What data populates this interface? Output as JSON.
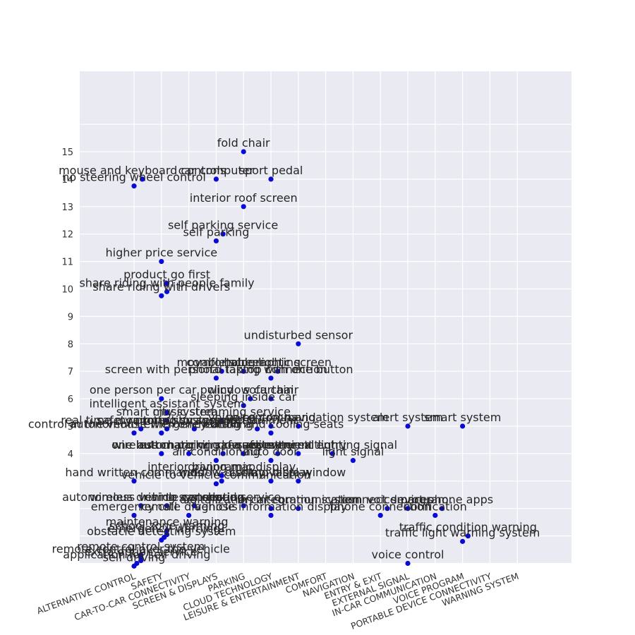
{
  "chart_data": {
    "type": "scatter",
    "title": "",
    "xlabel": "",
    "ylabel": "",
    "grid": true,
    "ylim": [
      0,
      16
    ],
    "yticks": [
      4,
      5,
      6,
      7,
      8,
      9,
      10,
      11,
      12,
      13,
      14,
      15
    ],
    "categories": [
      "ALTERNATIVE CONTROL",
      "SAFETY",
      "CAR-TO-CAR CONNECTIVITY",
      "SCREEN & DISPLAYS",
      "PARKING",
      "CLOUD TECHNOLOGY",
      "LEISURE & ENTERTAINMENT",
      "COMFORT",
      "NAVIGATION",
      "ENTRY & EXIT",
      "EXTERNAL SIGNAL",
      "IN-CAR COMMUNICATION",
      "VOICE PROGRAM",
      "PORTABLE DEVICE CONNECTIVITY",
      "WARNING SYSTEM"
    ],
    "points": [
      {
        "x": 4,
        "y": 15.0,
        "label": "fold chair"
      },
      {
        "x": 0.3,
        "y": 14.0,
        "label": "mouse and keyboard controls"
      },
      {
        "x": 0.0,
        "y": 13.75,
        "label": "no steering wheel control"
      },
      {
        "x": 3,
        "y": 14.0,
        "label": "car computer"
      },
      {
        "x": 5,
        "y": 14.0,
        "label": "sport pedal"
      },
      {
        "x": 4,
        "y": 13.0,
        "label": "interior roof screen"
      },
      {
        "x": 3.25,
        "y": 12.0,
        "label": "self parking service"
      },
      {
        "x": 3.0,
        "y": 11.75,
        "label": "self parking"
      },
      {
        "x": 1,
        "y": 11.0,
        "label": "higher price service"
      },
      {
        "x": 1.2,
        "y": 10.2,
        "label": "product go first"
      },
      {
        "x": 1.2,
        "y": 9.9,
        "label": "share riding with people family"
      },
      {
        "x": 1.0,
        "y": 9.75,
        "label": "share riding with drivers"
      },
      {
        "x": 6,
        "y": 8.0,
        "label": "undisturbed sensor"
      },
      {
        "x": 3.2,
        "y": 7.0,
        "label": "movable screen"
      },
      {
        "x": 4,
        "y": 7.0,
        "label": "comfortable lighting"
      },
      {
        "x": 5.25,
        "y": 7.0,
        "label": "holographic screen"
      },
      {
        "x": 3.0,
        "y": 6.75,
        "label": "screen with personal laptop connection"
      },
      {
        "x": 5.0,
        "y": 6.75,
        "label": "photo taking with one button"
      },
      {
        "x": 1,
        "y": 6.0,
        "label": "one person per car policy"
      },
      {
        "x": 4.25,
        "y": 6.0,
        "label": "window curtain"
      },
      {
        "x": 5.0,
        "y": 6.0,
        "label": "sofa chair"
      },
      {
        "x": 4.0,
        "y": 5.75,
        "label": "sleeping inside car"
      },
      {
        "x": 1.2,
        "y": 5.5,
        "label": "intelligent assistant system"
      },
      {
        "x": 1.2,
        "y": 5.2,
        "label": "smart city system"
      },
      {
        "x": 3.2,
        "y": 5.2,
        "label": "music streaming service"
      },
      {
        "x": 5,
        "y": 5.0,
        "label": "voice command"
      },
      {
        "x": 6,
        "y": 5.0,
        "label": "voice control navigation system"
      },
      {
        "x": 10,
        "y": 5.0,
        "label": "alert system"
      },
      {
        "x": 12,
        "y": 5.0,
        "label": "smart system"
      },
      {
        "x": 0.25,
        "y": 4.9,
        "label": "real time monitoring system"
      },
      {
        "x": 1.2,
        "y": 4.9,
        "label": "safety protection system"
      },
      {
        "x": 2.2,
        "y": 4.9,
        "label": "remote storage system"
      },
      {
        "x": 4.5,
        "y": 4.9,
        "label": "entertainment"
      },
      {
        "x": 0.0,
        "y": 4.75,
        "label": "control in the vehicle with one button"
      },
      {
        "x": 1.0,
        "y": 4.75,
        "label": "autonomous emergency braking"
      },
      {
        "x": 5.0,
        "y": 4.75,
        "label": "heating and cooling seats"
      },
      {
        "x": 3.25,
        "y": 4.0,
        "label": "automatic window adjustment"
      },
      {
        "x": 6.0,
        "y": 4.0,
        "label": "convenient entry"
      },
      {
        "x": 7.25,
        "y": 4.0,
        "label": "external lighting signal"
      },
      {
        "x": 4.0,
        "y": 4.0,
        "label": "safe seats"
      },
      {
        "x": 5.25,
        "y": 4.0,
        "label": "safe entry exit"
      },
      {
        "x": 1.0,
        "y": 4.0,
        "label": "wireless charging"
      },
      {
        "x": 2.0,
        "y": 4.0,
        "label": "one button parking request"
      },
      {
        "x": 3.0,
        "y": 3.75,
        "label": "air conditioning"
      },
      {
        "x": 5.0,
        "y": 3.75,
        "label": "auto door"
      },
      {
        "x": 8.0,
        "y": 3.75,
        "label": "light signal"
      },
      {
        "x": 0.0,
        "y": 3.0,
        "label": "hand written commands"
      },
      {
        "x": 3.2,
        "y": 3.0,
        "label": "window display"
      },
      {
        "x": 5.0,
        "y": 3.0,
        "label": "control display"
      },
      {
        "x": 6.0,
        "y": 3.0,
        "label": "movable window"
      },
      {
        "x": 3.2,
        "y": 3.2,
        "label": "driving map"
      },
      {
        "x": 3.2,
        "y": 3.2,
        "label": "interior panoramic display"
      },
      {
        "x": 3.0,
        "y": 2.9,
        "label": "vehicle to vehicle communication"
      },
      {
        "x": 0.25,
        "y": 2.1,
        "label": "autonomous driving system"
      },
      {
        "x": 1.2,
        "y": 2.1,
        "label": "wireless vehicle connection"
      },
      {
        "x": 2.2,
        "y": 2.1,
        "label": "car to car sharing"
      },
      {
        "x": 4.0,
        "y": 2.1,
        "label": "cloud service"
      },
      {
        "x": 5.0,
        "y": 2.0,
        "label": "digitalization integration system"
      },
      {
        "x": 6.0,
        "y": 2.0,
        "label": "in car communication"
      },
      {
        "x": 9.25,
        "y": 2.0,
        "label": "connect devices"
      },
      {
        "x": 10.0,
        "y": 2.0,
        "label": "voice program"
      },
      {
        "x": 11.25,
        "y": 2.0,
        "label": "smart phone apps"
      },
      {
        "x": 0.0,
        "y": 1.75,
        "label": "emergency call"
      },
      {
        "x": 2.0,
        "y": 1.75,
        "label": "remote diagnosis"
      },
      {
        "x": 5.0,
        "y": 1.75,
        "label": "vehicle information display"
      },
      {
        "x": 9.0,
        "y": 1.75,
        "label": "phone connection"
      },
      {
        "x": 11.0,
        "y": 1.75,
        "label": "notification"
      },
      {
        "x": 1.2,
        "y": 1.2,
        "label": "maintenance warning"
      },
      {
        "x": 1.2,
        "y": 1.05,
        "label": "school zone warning"
      },
      {
        "x": 1.1,
        "y": 0.95,
        "label": "emergency warning"
      },
      {
        "x": 1.0,
        "y": 0.85,
        "label": "obstacle detecting system"
      },
      {
        "x": 12.2,
        "y": 1.0,
        "label": "traffic condition warning"
      },
      {
        "x": 12.0,
        "y": 0.8,
        "label": "traffic light warning system"
      },
      {
        "x": 0.25,
        "y": 0.3,
        "label": "remote control system"
      },
      {
        "x": 0.25,
        "y": 0.2,
        "label": "remote control over the vehicle"
      },
      {
        "x": 0.25,
        "y": 0.1,
        "label": "extra option service"
      },
      {
        "x": 0.1,
        "y": 0.0,
        "label": "application for self driving"
      },
      {
        "x": 0.0,
        "y": -0.1,
        "label": "self driving"
      },
      {
        "x": 10,
        "y": 0.0,
        "label": "voice control"
      }
    ]
  }
}
